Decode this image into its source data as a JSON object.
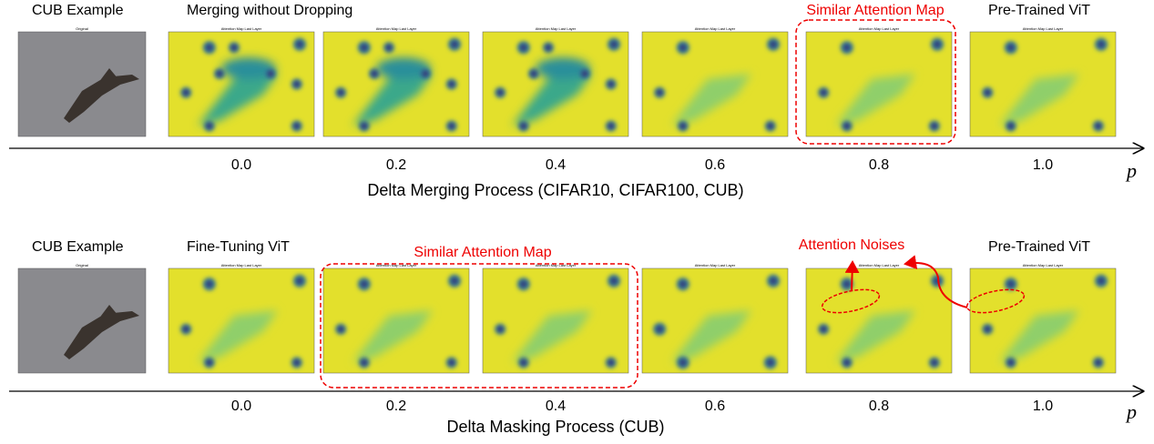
{
  "rows": [
    {
      "panels": [
        {
          "label": "CUB Example",
          "title": "Original"
        },
        {
          "label": "Merging without Dropping",
          "title": "Attention Map Last Layer"
        },
        {
          "title": "Attention Map Last Layer"
        },
        {
          "title": "Attention Map Last Layer"
        },
        {
          "title": "Attention Map Last Layer"
        },
        {
          "title": "Attention Map Last Layer"
        },
        {
          "label": "Pre-Trained ViT",
          "title": "Attention Map Last Layer"
        }
      ],
      "highlight": "Similar Attention Map",
      "ticks": [
        "0.0",
        "0.2",
        "0.4",
        "0.6",
        "0.8",
        "1.0"
      ],
      "axis_symbol": "p",
      "caption": "Delta Merging Process (CIFAR10, CIFAR100, CUB)"
    },
    {
      "panels": [
        {
          "label": "CUB Example",
          "title": "Original"
        },
        {
          "label": "Fine-Tuning ViT",
          "title": "Attention Map Last Layer"
        },
        {
          "title": "Attention Map Last Layer"
        },
        {
          "title": "Attention Map Last Layer"
        },
        {
          "title": "Attention Map Last Layer"
        },
        {
          "title": "Attention Map Last Layer"
        },
        {
          "label": "Pre-Trained ViT",
          "title": "Attention Map Last Layer"
        }
      ],
      "highlight": "Similar Attention Map",
      "annotation": "Attention Noises",
      "ticks": [
        "0.0",
        "0.2",
        "0.4",
        "0.6",
        "0.8",
        "1.0"
      ],
      "axis_symbol": "p",
      "caption": "Delta Masking Process (CUB)"
    }
  ]
}
